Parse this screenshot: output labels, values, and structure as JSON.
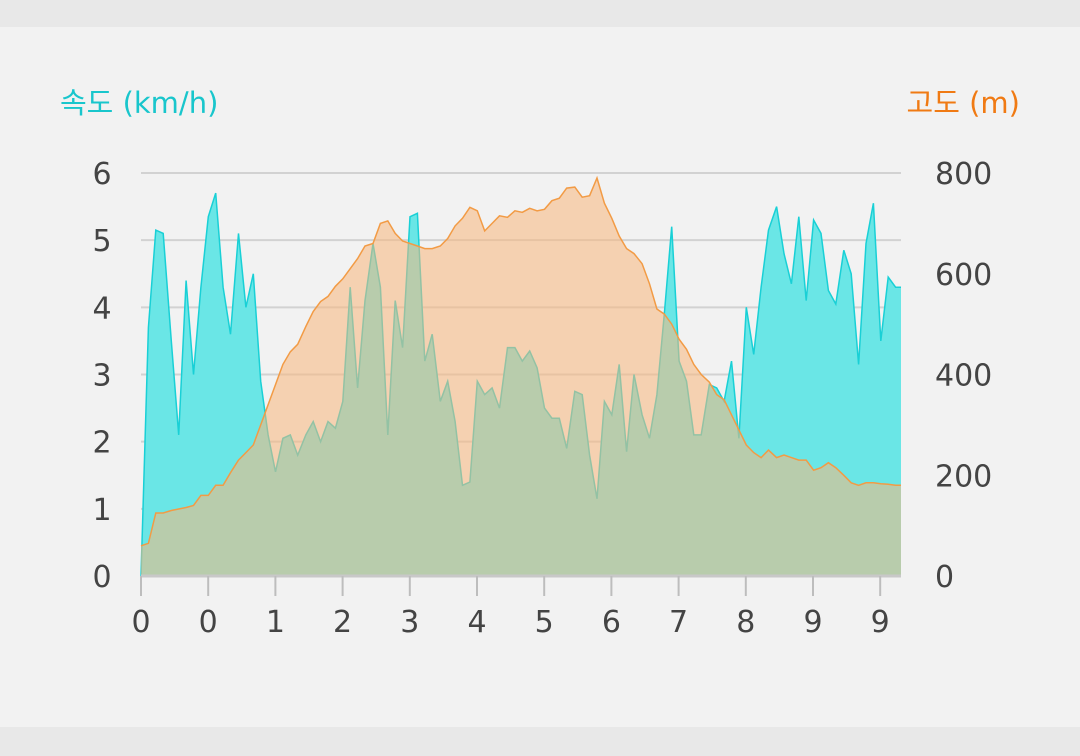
{
  "chart_data": {
    "type": "area",
    "y_left_label": "속도 (km/h)",
    "y_right_label": "고도 (m)",
    "y_left_ticks": [
      "0",
      "1",
      "2",
      "3",
      "4",
      "5",
      "6"
    ],
    "y_right_ticks": [
      "0",
      "200",
      "400",
      "600",
      "800"
    ],
    "x_tick_labels": [
      "0",
      "0",
      "1",
      "2",
      "3",
      "4",
      "5",
      "6",
      "7",
      "8",
      "9",
      "9"
    ],
    "x_tick_positions": [
      0,
      1,
      2,
      3,
      4,
      5,
      6,
      7,
      8,
      9,
      10,
      11
    ],
    "y_left_range": [
      0,
      6
    ],
    "y_right_range": [
      0,
      800
    ],
    "x_range": [
      0,
      11.3
    ],
    "grid": true,
    "series": [
      {
        "name": "속도 (km/h)",
        "axis": "left",
        "color": "#19d0d6",
        "fill": "#6ae6e6",
        "x": [
          0,
          0.11,
          0.22,
          0.33,
          0.45,
          0.56,
          0.67,
          0.78,
          0.89,
          1.0,
          1.11,
          1.22,
          1.33,
          1.45,
          1.56,
          1.67,
          1.78,
          1.89,
          2.0,
          2.11,
          2.22,
          2.33,
          2.45,
          2.56,
          2.67,
          2.78,
          2.89,
          3.0,
          3.11,
          3.22,
          3.33,
          3.45,
          3.56,
          3.67,
          3.78,
          3.89,
          4.0,
          4.11,
          4.22,
          4.33,
          4.45,
          4.56,
          4.67,
          4.78,
          4.89,
          5.0,
          5.11,
          5.22,
          5.33,
          5.45,
          5.56,
          5.67,
          5.78,
          5.89,
          6.0,
          6.11,
          6.22,
          6.33,
          6.45,
          6.56,
          6.67,
          6.78,
          6.89,
          7.0,
          7.11,
          7.22,
          7.33,
          7.45,
          7.56,
          7.67,
          7.78,
          7.89,
          8.0,
          8.11,
          8.22,
          8.33,
          8.45,
          8.56,
          8.67,
          8.78,
          8.89,
          9.0,
          9.11,
          9.22,
          9.33,
          9.45,
          9.56,
          9.67,
          9.78,
          9.89,
          10.0,
          10.11,
          10.22,
          10.33,
          10.45,
          10.56,
          10.67,
          10.78,
          10.89,
          11.0,
          11.11,
          11.22,
          11.3
        ],
        "values": [
          0,
          3.7,
          5.15,
          5.1,
          3.5,
          2.1,
          4.4,
          3.0,
          4.3,
          5.35,
          5.7,
          4.3,
          3.6,
          5.1,
          4.0,
          4.5,
          2.9,
          2.1,
          1.55,
          2.05,
          2.1,
          1.8,
          2.1,
          2.3,
          2.0,
          2.3,
          2.2,
          2.6,
          4.3,
          2.8,
          4.1,
          4.95,
          4.3,
          2.1,
          4.1,
          3.4,
          5.35,
          5.4,
          3.2,
          3.6,
          2.6,
          2.9,
          2.3,
          1.35,
          1.4,
          2.9,
          2.7,
          2.8,
          2.5,
          3.4,
          3.4,
          3.2,
          3.35,
          3.1,
          2.5,
          2.35,
          2.35,
          1.9,
          2.75,
          2.7,
          1.8,
          1.15,
          2.6,
          2.4,
          3.15,
          1.85,
          3.0,
          2.4,
          2.05,
          2.7,
          3.9,
          5.2,
          3.2,
          2.9,
          2.1,
          2.1,
          2.85,
          2.8,
          2.6,
          3.2,
          2.05,
          4.0,
          3.3,
          4.3,
          5.15,
          5.5,
          4.8,
          4.35,
          5.35,
          4.1,
          5.3,
          5.1,
          4.25,
          4.05,
          4.85,
          4.5,
          3.15,
          4.95,
          5.55,
          3.5,
          4.45,
          4.3,
          4.3
        ]
      },
      {
        "name": "고도 (m)",
        "axis": "right",
        "color": "#f29b45",
        "fill": "#f8b77b",
        "x": [
          0,
          0.11,
          0.22,
          0.33,
          0.45,
          0.56,
          0.67,
          0.78,
          0.89,
          1.0,
          1.11,
          1.22,
          1.33,
          1.45,
          1.56,
          1.67,
          1.78,
          1.89,
          2.0,
          2.11,
          2.22,
          2.33,
          2.45,
          2.56,
          2.67,
          2.78,
          2.89,
          3.0,
          3.11,
          3.22,
          3.33,
          3.45,
          3.56,
          3.67,
          3.78,
          3.89,
          4.0,
          4.11,
          4.22,
          4.33,
          4.45,
          4.56,
          4.67,
          4.78,
          4.89,
          5.0,
          5.11,
          5.22,
          5.33,
          5.45,
          5.56,
          5.67,
          5.78,
          5.89,
          6.0,
          6.11,
          6.22,
          6.33,
          6.45,
          6.56,
          6.67,
          6.78,
          6.89,
          7.0,
          7.11,
          7.22,
          7.33,
          7.45,
          7.56,
          7.67,
          7.78,
          7.89,
          8.0,
          8.11,
          8.22,
          8.33,
          8.45,
          8.56,
          8.67,
          8.78,
          8.89,
          9.0,
          9.11,
          9.22,
          9.33,
          9.45,
          9.56,
          9.67,
          9.78,
          9.89,
          10.0,
          10.11,
          10.22,
          10.33,
          10.45,
          10.56,
          10.67,
          10.78,
          10.89,
          11.0,
          11.11,
          11.22,
          11.3
        ],
        "values": [
          60,
          65,
          125,
          125,
          130,
          133,
          136,
          140,
          160,
          160,
          180,
          180,
          205,
          230,
          245,
          260,
          300,
          340,
          380,
          420,
          445,
          460,
          495,
          525,
          545,
          555,
          575,
          590,
          610,
          630,
          655,
          660,
          700,
          705,
          680,
          665,
          660,
          655,
          650,
          650,
          655,
          670,
          695,
          710,
          732,
          725,
          685,
          700,
          715,
          712,
          725,
          722,
          730,
          725,
          728,
          745,
          750,
          770,
          772,
          752,
          755,
          790,
          740,
          710,
          675,
          650,
          640,
          620,
          580,
          530,
          520,
          500,
          470,
          450,
          420,
          400,
          385,
          360,
          350,
          320,
          290,
          260,
          245,
          235,
          250,
          235,
          240,
          235,
          230,
          230,
          210,
          215,
          225,
          215,
          200,
          185,
          180,
          185,
          185,
          183,
          182,
          180,
          180
        ]
      }
    ]
  }
}
